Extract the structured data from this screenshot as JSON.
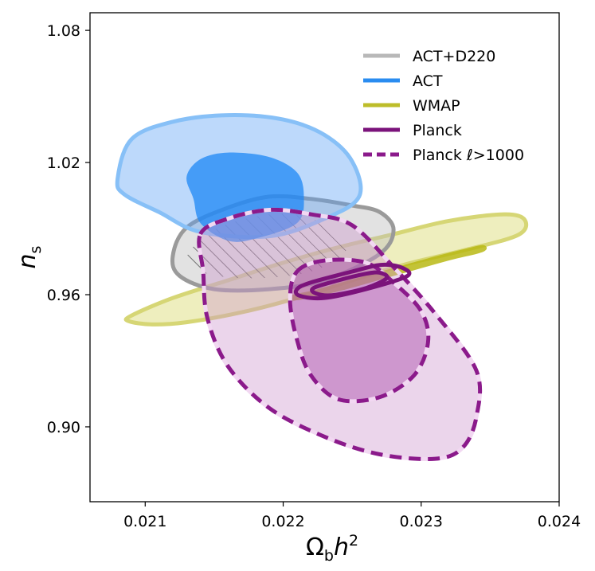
{
  "chart_data": {
    "type": "contour",
    "title": "",
    "xlabel": {
      "main": "Ω",
      "sub": "b",
      "tail": "h",
      "sup": "2"
    },
    "ylabel": {
      "main": "n",
      "sub": "s"
    },
    "xlim": [
      0.0206,
      0.024
    ],
    "ylim": [
      0.866,
      1.088
    ],
    "xticks": [
      0.021,
      0.022,
      0.023,
      0.024
    ],
    "xtick_labels": [
      "0.021",
      "0.022",
      "0.023",
      "0.024"
    ],
    "yticks": [
      0.9,
      0.96,
      1.02,
      1.08
    ],
    "ytick_labels": [
      "0.90",
      "0.96",
      "1.02",
      "1.08"
    ],
    "legend_position": "top-right",
    "legend": [
      {
        "label": "ACT+D220",
        "color": "#b8b8b8",
        "style": "solid"
      },
      {
        "label": "ACT",
        "color": "#2a8cf0",
        "style": "solid"
      },
      {
        "label": "WMAP",
        "color": "#bdbd2a",
        "style": "solid"
      },
      {
        "label": "Planck",
        "color": "#7b137b",
        "style": "solid"
      },
      {
        "label": "Planck ℓ>1000",
        "color": "#8b1a8b",
        "style": "dashed"
      }
    ],
    "series": [
      {
        "name": "WMAP",
        "contours": [
          {
            "level": "95%",
            "outline": [
              [
                0.0209,
                0.9505
              ],
              [
                0.0212,
                0.9585
              ],
              [
                0.0216,
                0.9665
              ],
              [
                0.022,
                0.9745
              ],
              [
                0.0224,
                0.9815
              ],
              [
                0.0228,
                0.9875
              ],
              [
                0.0232,
                0.9935
              ],
              [
                0.0236,
                0.9965
              ],
              [
                0.02375,
                0.994
              ],
              [
                0.0237,
                0.987
              ],
              [
                0.0233,
                0.98
              ],
              [
                0.0229,
                0.974
              ],
              [
                0.0225,
                0.9665
              ],
              [
                0.0221,
                0.9585
              ],
              [
                0.0217,
                0.952
              ],
              [
                0.0213,
                0.9475
              ],
              [
                0.02105,
                0.9465
              ],
              [
                0.02088,
                0.948
              ]
            ]
          },
          {
            "level": "68%",
            "outline": [
              [
                0.02225,
                0.9625
              ],
              [
                0.02265,
                0.9695
              ],
              [
                0.02305,
                0.9765
              ],
              [
                0.0233,
                0.9805
              ],
              [
                0.02345,
                0.9825
              ],
              [
                0.02345,
                0.9795
              ],
              [
                0.0232,
                0.9755
              ],
              [
                0.0228,
                0.9685
              ],
              [
                0.0224,
                0.9615
              ],
              [
                0.0221,
                0.9575
              ],
              [
                0.02205,
                0.9595
              ]
            ]
          }
        ]
      },
      {
        "name": "ACT+D220",
        "contours": [
          {
            "level": "95%",
            "outline": [
              [
                0.0212,
                0.9775
              ],
              [
                0.0213,
                0.9905
              ],
              [
                0.0216,
                0.9995
              ],
              [
                0.0219,
                1.0045
              ],
              [
                0.0222,
                1.0035
              ],
              [
                0.0225,
                1.0005
              ],
              [
                0.0227,
                0.9975
              ],
              [
                0.0228,
                0.9895
              ],
              [
                0.0227,
                0.9785
              ],
              [
                0.0223,
                0.9665
              ],
              [
                0.0219,
                0.9625
              ],
              [
                0.0215,
                0.9625
              ],
              [
                0.02125,
                0.9685
              ]
            ]
          },
          {
            "level": "68%",
            "outline": [
              [
                0.0213,
                0.9765
              ],
              [
                0.0215,
                0.9895
              ],
              [
                0.0219,
                0.9965
              ],
              [
                0.0222,
                0.9945
              ],
              [
                0.0224,
                0.9875
              ],
              [
                0.02245,
                0.9795
              ],
              [
                0.0222,
                0.9705
              ],
              [
                0.0218,
                0.9675
              ],
              [
                0.02145,
                0.9695
              ]
            ]
          }
        ]
      },
      {
        "name": "ACT",
        "contours": [
          {
            "level": "95%",
            "outline": [
              [
                0.0208,
                1.0125
              ],
              [
                0.0209,
                1.0305
              ],
              [
                0.0212,
                1.0385
              ],
              [
                0.0216,
                1.0415
              ],
              [
                0.022,
                1.0395
              ],
              [
                0.0223,
                1.0325
              ],
              [
                0.0225,
                1.0205
              ],
              [
                0.02255,
                1.0045
              ],
              [
                0.0223,
                0.9945
              ],
              [
                0.0219,
                0.9865
              ],
              [
                0.0214,
                0.9885
              ],
              [
                0.0211,
                0.9975
              ],
              [
                0.02085,
                1.0055
              ]
            ]
          },
          {
            "level": "68%",
            "outline": [
              [
                0.0213,
                1.0135
              ],
              [
                0.0214,
                1.0215
              ],
              [
                0.0216,
                1.0245
              ],
              [
                0.0219,
                1.0225
              ],
              [
                0.0221,
                1.0155
              ],
              [
                0.02215,
                1.0045
              ],
              [
                0.0221,
                0.9925
              ],
              [
                0.0218,
                0.9855
              ],
              [
                0.0216,
                0.9845
              ],
              [
                0.0214,
                0.9925
              ],
              [
                0.02135,
                1.0035
              ]
            ]
          }
        ]
      },
      {
        "name": "Planck ℓ>1000",
        "contours": [
          {
            "level": "95%",
            "outline": [
              [
                0.0214,
                0.9875
              ],
              [
                0.0216,
                0.9945
              ],
              [
                0.0219,
                0.9985
              ],
              [
                0.0222,
                0.9965
              ],
              [
                0.0225,
                0.9915
              ],
              [
                0.0228,
                0.9725
              ],
              [
                0.0231,
                0.9515
              ],
              [
                0.0234,
                0.9255
              ],
              [
                0.0234,
                0.9045
              ],
              [
                0.0233,
                0.8905
              ],
              [
                0.0231,
                0.8855
              ],
              [
                0.0227,
                0.8875
              ],
              [
                0.0223,
                0.8955
              ],
              [
                0.0219,
                0.9085
              ],
              [
                0.0216,
                0.9275
              ],
              [
                0.02145,
                0.9495
              ],
              [
                0.02142,
                0.9705
              ]
            ]
          },
          {
            "level": "68%",
            "outline": [
              [
                0.0221,
                0.9705
              ],
              [
                0.0223,
                0.9755
              ],
              [
                0.0226,
                0.9745
              ],
              [
                0.0228,
                0.9655
              ],
              [
                0.023,
                0.9525
              ],
              [
                0.02305,
                0.9385
              ],
              [
                0.02295,
                0.9235
              ],
              [
                0.0227,
                0.9135
              ],
              [
                0.0224,
                0.9125
              ],
              [
                0.0222,
                0.9235
              ],
              [
                0.0221,
                0.9395
              ],
              [
                0.02205,
                0.9575
              ]
            ]
          }
        ]
      },
      {
        "name": "Planck",
        "contours": [
          {
            "level": "95%",
            "outline": [
              [
                0.02212,
                0.9595
              ],
              [
                0.0221,
                0.9625
              ],
              [
                0.0222,
                0.9655
              ],
              [
                0.0225,
                0.9705
              ],
              [
                0.0227,
                0.9735
              ],
              [
                0.02285,
                0.9725
              ],
              [
                0.0229,
                0.9685
              ],
              [
                0.0226,
                0.9625
              ],
              [
                0.0223,
                0.9585
              ]
            ]
          },
          {
            "level": "68%",
            "outline": [
              [
                0.02224,
                0.9605
              ],
              [
                0.02222,
                0.963
              ],
              [
                0.0224,
                0.9665
              ],
              [
                0.0226,
                0.9695
              ],
              [
                0.0227,
                0.97
              ],
              [
                0.02275,
                0.9675
              ],
              [
                0.0226,
                0.963
              ],
              [
                0.02236,
                0.9598
              ]
            ]
          }
        ]
      }
    ]
  }
}
